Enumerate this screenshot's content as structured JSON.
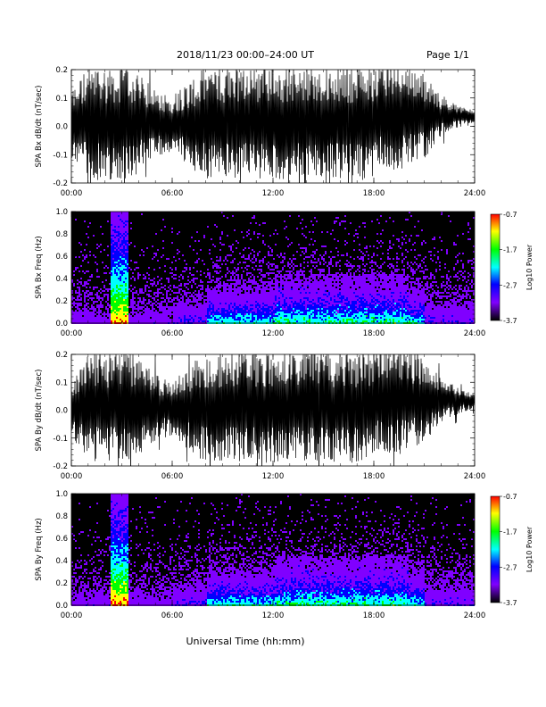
{
  "header": {
    "title": "2018/11/23  00:00–24:00 UT",
    "page": "Page 1/1"
  },
  "xaxis": {
    "ticks": [
      "00:00",
      "06:00",
      "12:00",
      "18:00",
      "24:00"
    ],
    "label": "Universal Time (hh:mm)",
    "range_hours": [
      0,
      24
    ]
  },
  "colorbar": {
    "ticks": [
      "-0.7",
      "-1.7",
      "-2.7",
      "-3.7"
    ],
    "label": "Log10 Power",
    "colors": [
      "#ff0000",
      "#ffff00",
      "#00ff00",
      "#00ffff",
      "#0000ff",
      "#8000ff",
      "#000000"
    ]
  },
  "chart_data": [
    {
      "type": "line",
      "ylabel": "SPA Bx dB/dt (nT/sec)",
      "ylim": [
        -0.2,
        0.2
      ],
      "yticks": [
        "0.2",
        "0.1",
        "0.0",
        "-0.1",
        "-0.2"
      ],
      "x_hours": [
        0,
        1,
        2,
        2.7,
        3.5,
        5,
        6,
        8,
        10,
        12,
        14,
        16,
        18,
        19.5,
        21,
        22,
        23,
        24
      ],
      "y_envelope": [
        0.12,
        0.2,
        0.2,
        0.2,
        0.2,
        0.12,
        0.1,
        0.2,
        0.2,
        0.2,
        0.2,
        0.2,
        0.2,
        0.2,
        0.15,
        0.07,
        0.04,
        0.02
      ]
    },
    {
      "type": "heatmap",
      "ylabel": "SPA Bx Freq (Hz)",
      "ylim": [
        0.0,
        1.0
      ],
      "yticks": [
        "1.0",
        "0.8",
        "0.6",
        "0.4",
        "0.2",
        "0.0"
      ],
      "zlim": [
        -3.7,
        -0.7
      ]
    },
    {
      "type": "line",
      "ylabel": "SPA By dB/dt (nT/sec)",
      "ylim": [
        -0.2,
        0.2
      ],
      "yticks": [
        "0.2",
        "0.1",
        "0.0",
        "-0.1",
        "-0.2"
      ],
      "x_hours": [
        0,
        1,
        2,
        2.7,
        3.5,
        5,
        6,
        8,
        10,
        12,
        14,
        16,
        18,
        19.5,
        21,
        22,
        23,
        24
      ],
      "y_envelope": [
        0.1,
        0.2,
        0.2,
        0.2,
        0.2,
        0.12,
        0.1,
        0.2,
        0.2,
        0.2,
        0.2,
        0.2,
        0.2,
        0.2,
        0.15,
        0.08,
        0.05,
        0.03
      ]
    },
    {
      "type": "heatmap",
      "ylabel": "SPA By Freq (Hz)",
      "ylim": [
        0.0,
        1.0
      ],
      "yticks": [
        "1.0",
        "0.8",
        "0.6",
        "0.4",
        "0.2",
        "0.0"
      ],
      "zlim": [
        -3.7,
        -0.7
      ]
    }
  ]
}
